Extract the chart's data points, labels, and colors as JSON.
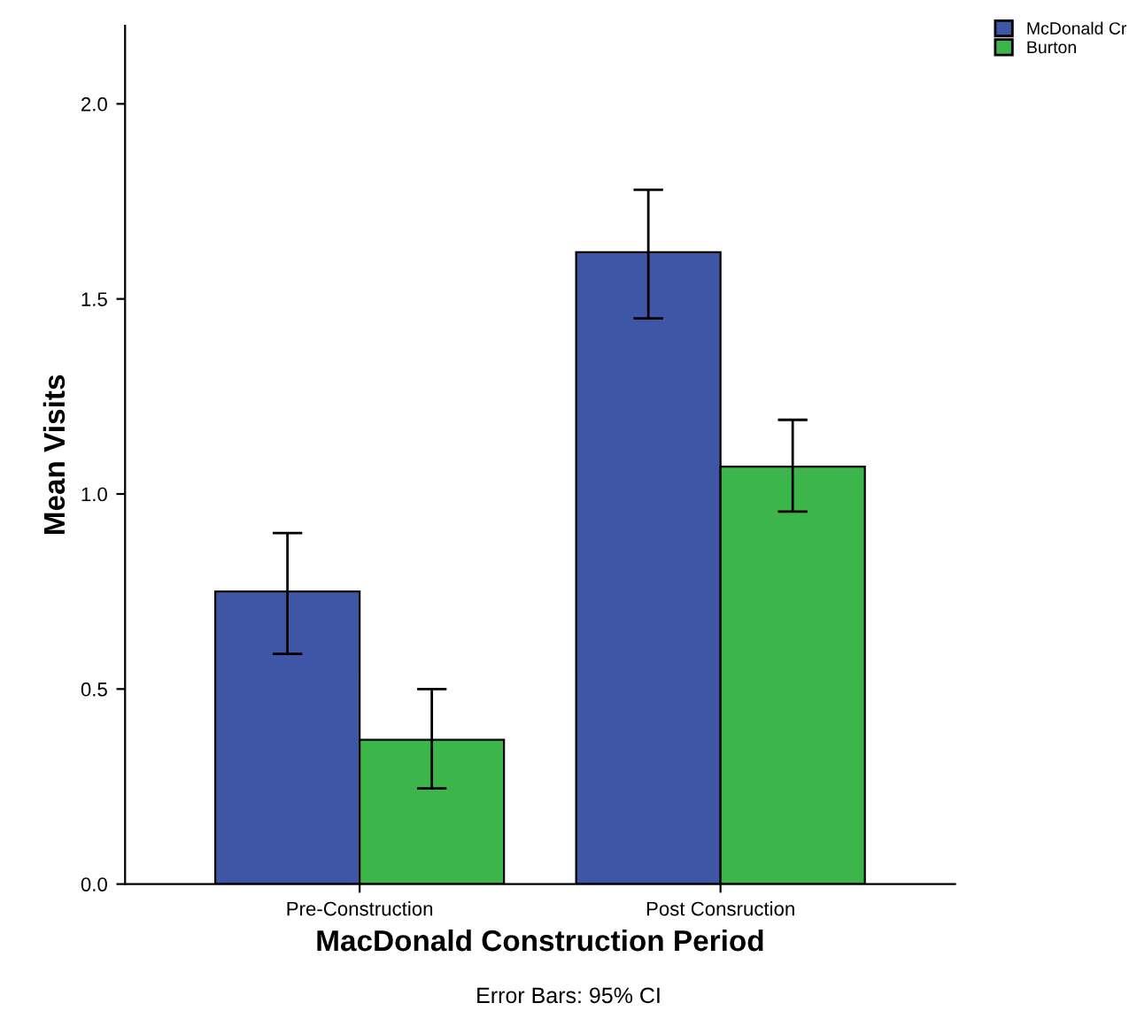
{
  "chart_data": {
    "type": "bar",
    "xlabel": "MacDonald Construction Period",
    "ylabel": "Mean Visits",
    "categories": [
      "Pre-Construction",
      "Post Consruction"
    ],
    "series": [
      {
        "name": "McDonald Cr",
        "color": "#3f56a6",
        "values": [
          0.75,
          1.62
        ],
        "errors": [
          [
            0.59,
            0.9
          ],
          [
            1.45,
            1.78
          ]
        ]
      },
      {
        "name": "Burton",
        "color": "#3cb64a",
        "values": [
          0.37,
          1.07
        ],
        "errors": [
          [
            0.245,
            0.5
          ],
          [
            0.955,
            1.19
          ]
        ]
      }
    ],
    "ylim": [
      0,
      2.2
    ],
    "yticks": [
      {
        "value": 0,
        "label": "0.0"
      },
      {
        "value": 0.5,
        "label": "0.5"
      },
      {
        "value": 1.0,
        "label": "1.0"
      },
      {
        "value": 1.5,
        "label": "1.5"
      },
      {
        "value": 2.0,
        "label": "2.0"
      }
    ],
    "grid": false,
    "legend": "top right",
    "annotations": [
      "Error Bars: 95% CI"
    ]
  }
}
